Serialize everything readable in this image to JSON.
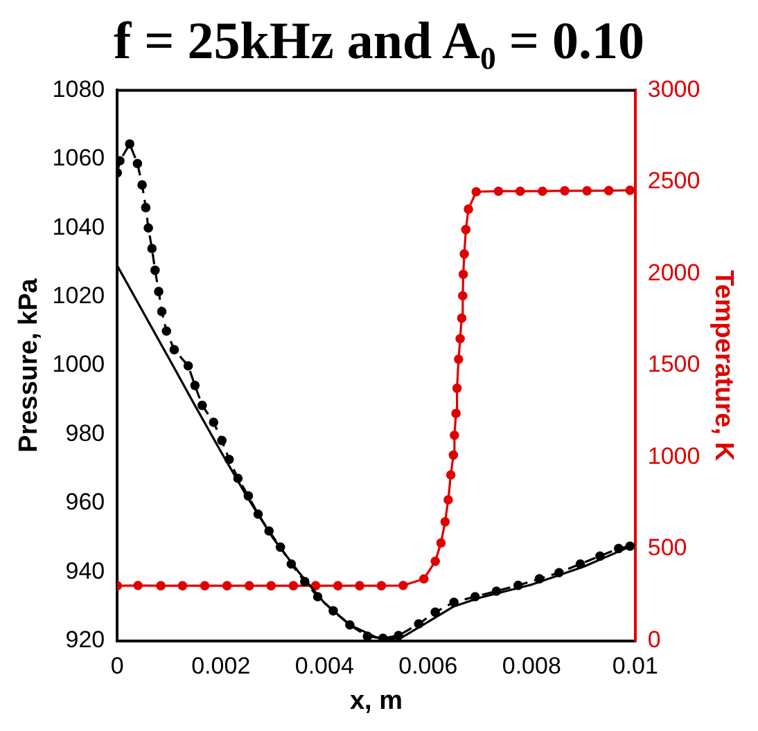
{
  "chart_data": {
    "type": "line",
    "title": "f = 25kHz and A₀ = 0.10",
    "xlabel": "x, m",
    "ylabel": "Pressure, kPa",
    "y2label": "Temperature, K",
    "xlim": [
      0,
      0.01
    ],
    "xticks": [
      0,
      0.002,
      0.004,
      0.006,
      0.008,
      0.01
    ],
    "ylim": [
      920,
      1080
    ],
    "yticks": [
      920,
      940,
      960,
      980,
      1000,
      1020,
      1040,
      1060,
      1080
    ],
    "y2lim": [
      0,
      3000
    ],
    "y2ticks": [
      0,
      500,
      1000,
      1500,
      2000,
      2500,
      3000
    ],
    "grid": false,
    "legend": false,
    "series": [
      {
        "color": "#000000",
        "marker": "none",
        "line_style": "solid",
        "x": [
          0,
          0.001,
          0.0015,
          0.002,
          0.0025,
          0.003,
          0.0035,
          0.004,
          0.0045,
          0.005,
          0.0052,
          0.0055,
          0.006,
          0.0065,
          0.007,
          0.008,
          0.009,
          0.01
        ],
        "values": [
          1029,
          1002,
          988.4,
          975,
          962,
          950,
          940,
          931,
          924.5,
          921,
          920.4,
          921,
          925.5,
          930,
          932.5,
          936.3,
          941.5,
          948
        ]
      },
      {
        "color": "#000000",
        "marker": "circle",
        "line_style": "dashed",
        "x": [
          0,
          5e-05,
          0.00024,
          0.00039,
          0.00048,
          0.00055,
          0.0006,
          0.00067,
          0.00073,
          0.0008,
          0.00086,
          0.00095,
          0.0011,
          0.00137,
          0.0015,
          0.00164,
          0.00186,
          0.00202,
          0.00216,
          0.00233,
          0.00253,
          0.00272,
          0.00293,
          0.00315,
          0.00336,
          0.00362,
          0.00387,
          0.00417,
          0.00449,
          0.00483,
          0.00513,
          0.00543,
          0.00582,
          0.00614,
          0.0065,
          0.00691,
          0.00732,
          0.00774,
          0.00815,
          0.00853,
          0.00894,
          0.00932,
          0.00968,
          0.0099
        ],
        "values": [
          1056,
          1059.5,
          1064.4,
          1058.7,
          1052.5,
          1045.9,
          1040,
          1034,
          1027.7,
          1021.5,
          1015.7,
          1010,
          1004.6,
          999.9,
          994.2,
          988.4,
          983.5,
          978.2,
          972.7,
          967.2,
          962.1,
          956.8,
          951.9,
          947.2,
          942.3,
          937.2,
          932.8,
          928.7,
          924.6,
          921.3,
          920.7,
          921.5,
          924.9,
          928.3,
          931.2,
          932.8,
          934.4,
          936.1,
          938,
          939.8,
          942.3,
          944.6,
          946.8,
          947.5
        ]
      },
      {
        "color": "#e00000",
        "marker": "circle",
        "line_style": "solid",
        "axis": "y2",
        "x": [
          0,
          0.0004,
          0.00084,
          0.00126,
          0.00169,
          0.00212,
          0.00255,
          0.00297,
          0.0034,
          0.00383,
          0.00426,
          0.00468,
          0.0051,
          0.00552,
          0.00592,
          0.00614,
          0.00625,
          0.00633,
          0.00639,
          0.00644,
          0.00649,
          0.00651,
          0.00654,
          0.00656,
          0.00659,
          0.00662,
          0.00665,
          0.00667,
          0.00668,
          0.0067,
          0.00673,
          0.00678,
          0.00693,
          0.00736,
          0.00778,
          0.00821,
          0.00864,
          0.00907,
          0.00949,
          0.0099
        ],
        "values": [
          300,
          301,
          300,
          300,
          300,
          300,
          300,
          300,
          300,
          300,
          300,
          300,
          300,
          301,
          337,
          433,
          533,
          648,
          768,
          904,
          1012,
          1120,
          1239,
          1376,
          1534,
          1646,
          1758,
          1880,
          1997,
          2108,
          2241,
          2352,
          2447,
          2450,
          2450,
          2450,
          2452,
          2452,
          2453,
          2455
        ]
      }
    ]
  }
}
